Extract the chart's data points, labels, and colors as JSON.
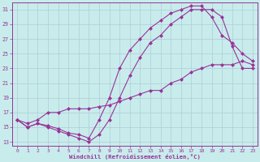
{
  "xlabel": "Windchill (Refroidissement éolien,°C)",
  "bg_color": "#c8ecec",
  "line_color": "#993399",
  "grid_color": "#b0ccd4",
  "xlim_min": -0.5,
  "xlim_max": 23.5,
  "ylim_min": 12.5,
  "ylim_max": 32.0,
  "yticks": [
    13,
    15,
    17,
    19,
    21,
    23,
    25,
    27,
    29,
    31
  ],
  "xticks": [
    0,
    1,
    2,
    3,
    4,
    5,
    6,
    7,
    8,
    9,
    10,
    11,
    12,
    13,
    14,
    15,
    16,
    17,
    18,
    19,
    20,
    21,
    22,
    23
  ],
  "curve1_x": [
    0,
    1,
    2,
    3,
    4,
    5,
    6,
    7,
    8,
    9,
    10,
    11,
    12,
    13,
    14,
    15,
    16,
    17,
    18,
    19,
    20,
    21,
    22,
    23
  ],
  "curve1_y": [
    16,
    15,
    15.5,
    15,
    14.5,
    14,
    13.5,
    13,
    14,
    16,
    19,
    22,
    24.5,
    26.5,
    27.5,
    29,
    30,
    31,
    31,
    31,
    30,
    26,
    23,
    23
  ],
  "curve2_x": [
    0,
    1,
    2,
    3,
    4,
    5,
    6,
    7,
    8,
    9,
    10,
    11,
    12,
    13,
    14,
    15,
    16,
    17,
    18,
    19,
    20,
    21,
    22,
    23
  ],
  "curve2_y": [
    16,
    15,
    15.5,
    15.2,
    14.8,
    14.2,
    14.0,
    13.5,
    16,
    19,
    23,
    25.5,
    27,
    28.5,
    29.5,
    30.5,
    31,
    31.5,
    31.5,
    30,
    27.5,
    26.5,
    25,
    24
  ],
  "curve3_x": [
    0,
    1,
    2,
    3,
    4,
    5,
    6,
    7,
    8,
    9,
    10,
    11,
    12,
    13,
    14,
    15,
    16,
    17,
    18,
    19,
    20,
    21,
    22,
    23
  ],
  "curve3_y": [
    16,
    15.5,
    16,
    17,
    17,
    17.5,
    17.5,
    17.5,
    17.8,
    18,
    18.5,
    19,
    19.5,
    20,
    20,
    21,
    21.5,
    22.5,
    23,
    23.5,
    23.5,
    23.5,
    24,
    23.5
  ]
}
